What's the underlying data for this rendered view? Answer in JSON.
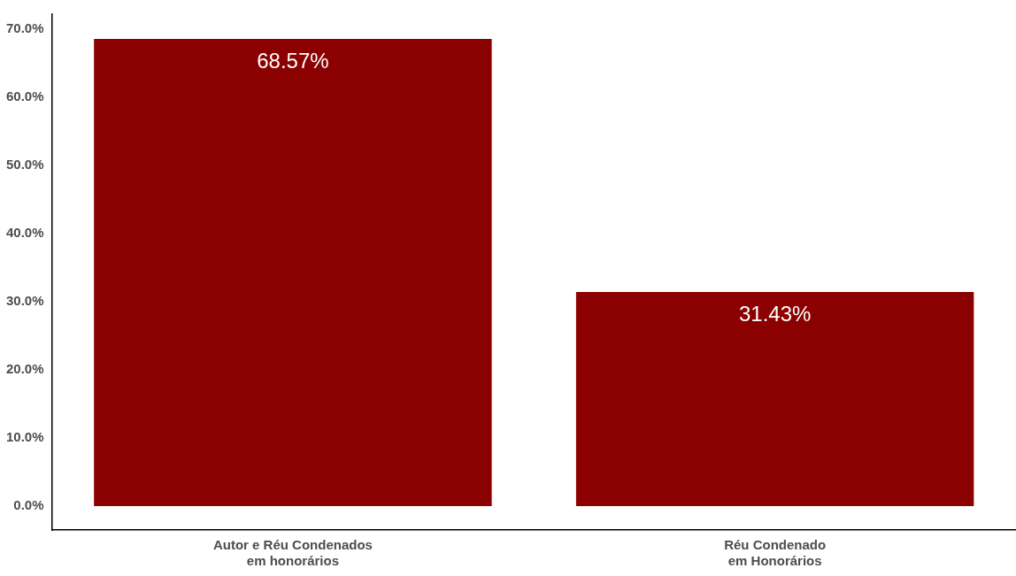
{
  "chart_data": {
    "type": "bar",
    "categories": [
      "Autor e Réu Condenados em honorários",
      "Réu Condenado em Honorários"
    ],
    "values": [
      68.57,
      31.43
    ],
    "color": "#8b0000",
    "value_labels": [
      "68.57%",
      "31.43%"
    ],
    "ylim": [
      -3.5,
      72.2
    ],
    "yticks": [
      {
        "value": 0,
        "label": "0.0%"
      },
      {
        "value": 10,
        "label": "10.0%"
      },
      {
        "value": 20,
        "label": "20.0%"
      },
      {
        "value": 30,
        "label": "30.0%"
      },
      {
        "value": 40,
        "label": "40.0%"
      },
      {
        "value": 50,
        "label": "50.0%"
      },
      {
        "value": 60,
        "label": "60.0%"
      },
      {
        "value": 70,
        "label": "70.0%"
      }
    ],
    "grid": false,
    "legend": false
  }
}
